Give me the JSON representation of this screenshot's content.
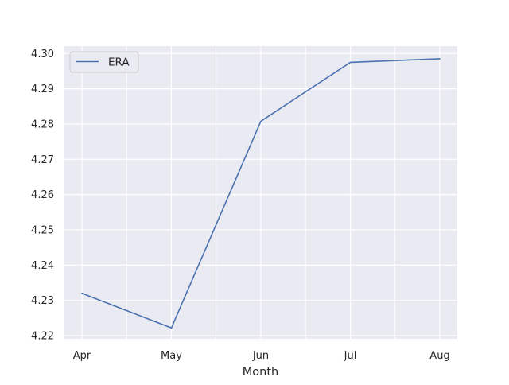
{
  "chart_data": {
    "type": "line",
    "categories": [
      "Apr",
      "May",
      "Jun",
      "Jul",
      "Aug"
    ],
    "series": [
      {
        "name": "ERA",
        "values": [
          4.232,
          4.2222,
          4.2808,
          4.2975,
          4.2985
        ],
        "color": "#4c72b0"
      }
    ],
    "xlabel": "Month",
    "ylabel": "",
    "ylim": [
      4.2191,
      4.3021
    ],
    "yticks": [
      4.22,
      4.23,
      4.24,
      4.25,
      4.26,
      4.27,
      4.28,
      4.29,
      4.3
    ],
    "ytick_labels": [
      "4.22",
      "4.23",
      "4.24",
      "4.25",
      "4.26",
      "4.27",
      "4.28",
      "4.29",
      "4.30"
    ],
    "grid": true,
    "minor_x_grid": true,
    "legend_position": "top-left",
    "background_color": "#eaeaf2",
    "grid_color": "#ffffff"
  }
}
